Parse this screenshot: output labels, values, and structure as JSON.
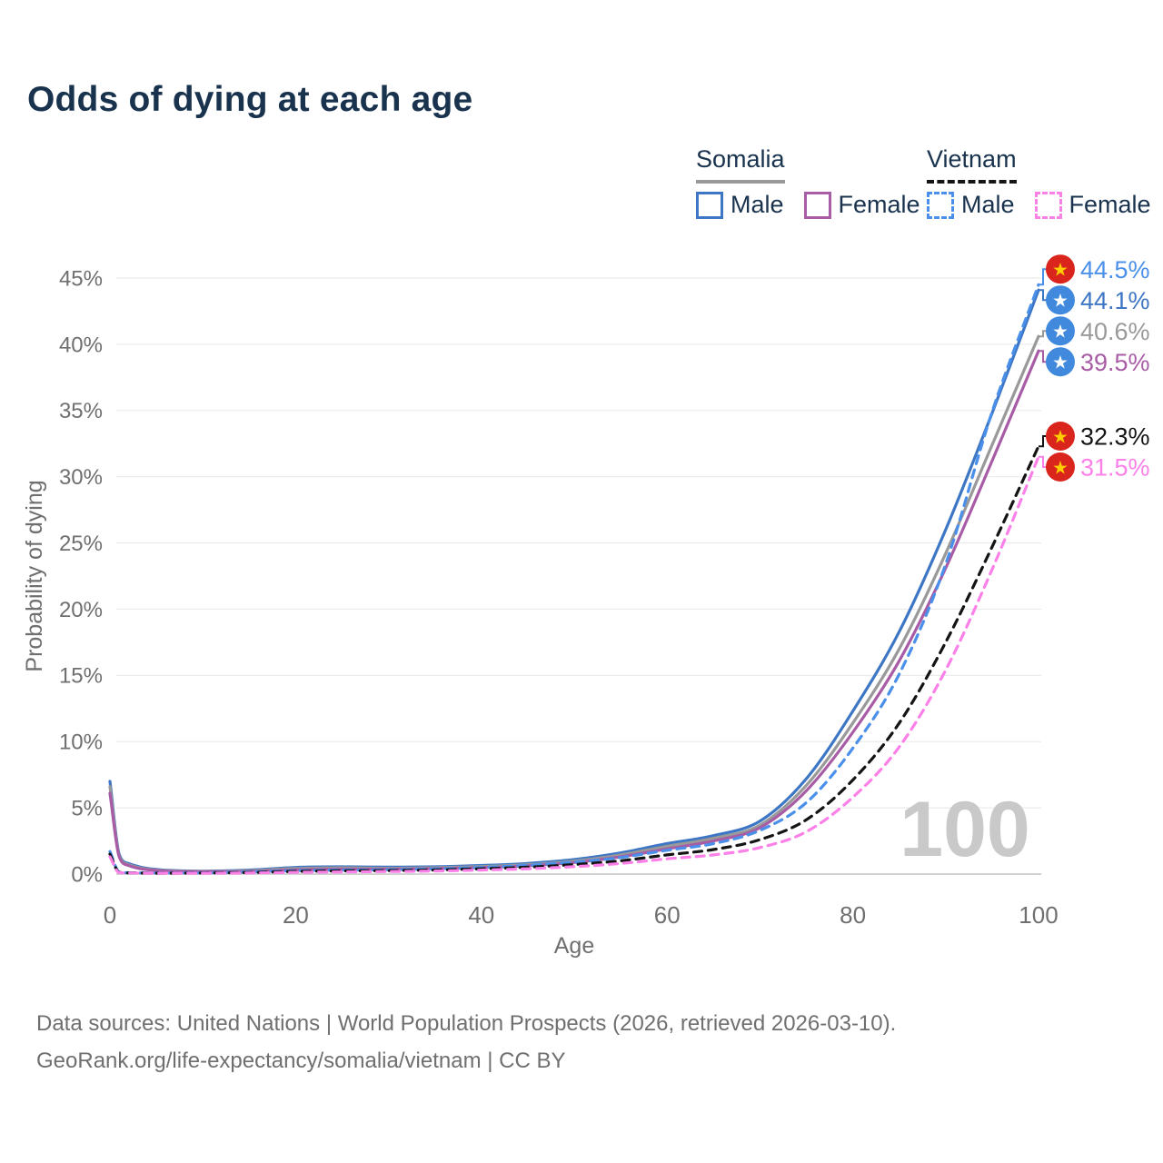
{
  "page": {
    "title": "Odds of dying at each age",
    "background": "#ffffff",
    "accent_navy": "#19334e"
  },
  "legend": {
    "groups": [
      {
        "id": "somalia",
        "label": "Somalia",
        "line_style": "solid",
        "line_color": "#999999",
        "items": [
          {
            "label": "Male",
            "color": "#3d76c4",
            "style": "solid"
          },
          {
            "label": "Female",
            "color": "#a85ca6",
            "style": "solid"
          }
        ]
      },
      {
        "id": "vietnam",
        "label": "Vietnam",
        "line_style": "dashed",
        "line_color": "#141414",
        "items": [
          {
            "label": "Male",
            "color": "#4a90ea",
            "style": "dashed"
          },
          {
            "label": "Female",
            "color": "#fb80e8",
            "style": "dashed"
          }
        ]
      }
    ]
  },
  "flags": {
    "somalia": {
      "bg": "#4189dd",
      "star": "#ffffff"
    },
    "vietnam": {
      "bg": "#da251d",
      "star": "#ffcd00"
    }
  },
  "chart_data": {
    "type": "line",
    "title": "Odds of dying at each age",
    "xlabel": "Age",
    "ylabel": "Probability of dying",
    "xlim": [
      0,
      100
    ],
    "ylim": [
      0,
      45
    ],
    "x_ticks": [
      0,
      20,
      40,
      60,
      80,
      100
    ],
    "y_ticks": [
      0,
      5,
      10,
      15,
      20,
      25,
      30,
      35,
      40,
      45
    ],
    "y_tick_suffix": "%",
    "grid": true,
    "legend_position": "top-right",
    "watermark": "100",
    "ages": [
      0,
      1,
      2,
      5,
      10,
      15,
      20,
      25,
      30,
      35,
      40,
      45,
      50,
      55,
      60,
      65,
      70,
      75,
      80,
      85,
      90,
      95,
      100
    ],
    "series": [
      {
        "id": "somalia-male",
        "name": "Somalia Male",
        "country": "somalia",
        "sex": "male",
        "style": "solid",
        "color": "#3d76c4",
        "label_color": "#3d76c4",
        "end_value": 44.1,
        "end_label": "44.1%",
        "values": [
          7.0,
          1.5,
          0.8,
          0.35,
          0.22,
          0.3,
          0.5,
          0.55,
          0.52,
          0.55,
          0.65,
          0.8,
          1.1,
          1.6,
          2.3,
          2.9,
          4.0,
          7.2,
          12.3,
          18.3,
          26.0,
          34.8,
          44.1
        ]
      },
      {
        "id": "somalia-both",
        "name": "Somalia Both sexes",
        "country": "somalia",
        "sex": "both",
        "style": "solid",
        "color": "#999999",
        "label_color": "#999999",
        "end_value": 40.6,
        "end_label": "40.6%",
        "values": [
          6.6,
          1.4,
          0.72,
          0.3,
          0.2,
          0.25,
          0.42,
          0.47,
          0.44,
          0.48,
          0.57,
          0.71,
          0.98,
          1.45,
          2.1,
          2.7,
          3.7,
          6.7,
          11.4,
          17.0,
          24.2,
          32.4,
          40.6
        ]
      },
      {
        "id": "somalia-female",
        "name": "Somalia Female",
        "country": "somalia",
        "sex": "female",
        "style": "solid",
        "color": "#a85ca6",
        "label_color": "#a85ca6",
        "end_value": 39.5,
        "end_label": "39.5%",
        "values": [
          6.1,
          1.3,
          0.65,
          0.27,
          0.18,
          0.2,
          0.32,
          0.37,
          0.37,
          0.41,
          0.49,
          0.63,
          0.87,
          1.3,
          1.9,
          2.5,
          3.5,
          6.3,
          10.7,
          16.1,
          23.1,
          31.2,
          39.5
        ]
      },
      {
        "id": "vietnam-male",
        "name": "Vietnam Male",
        "country": "vietnam",
        "sex": "male",
        "style": "dashed",
        "color": "#4a90ea",
        "label_color": "#4a90ea",
        "end_value": 44.5,
        "end_label": "44.5%",
        "values": [
          1.7,
          0.16,
          0.1,
          0.08,
          0.09,
          0.16,
          0.26,
          0.3,
          0.33,
          0.4,
          0.5,
          0.66,
          0.9,
          1.25,
          1.8,
          2.3,
          3.3,
          5.4,
          9.5,
          15.1,
          23.4,
          34.9,
          44.5
        ]
      },
      {
        "id": "vietnam-both",
        "name": "Vietnam Both sexes",
        "country": "vietnam",
        "sex": "both",
        "style": "dashed",
        "color": "#141414",
        "label_color": "#141414",
        "end_value": 32.3,
        "end_label": "32.3%",
        "values": [
          1.5,
          0.13,
          0.09,
          0.07,
          0.08,
          0.12,
          0.2,
          0.24,
          0.26,
          0.31,
          0.4,
          0.52,
          0.72,
          1.0,
          1.45,
          1.85,
          2.6,
          4.1,
          7.1,
          11.4,
          17.5,
          24.7,
          32.3
        ]
      },
      {
        "id": "vietnam-female",
        "name": "Vietnam Female",
        "country": "vietnam",
        "sex": "female",
        "style": "dashed",
        "color": "#fb80e8",
        "label_color": "#fb80e8",
        "end_value": 31.5,
        "end_label": "31.5%",
        "values": [
          1.3,
          0.11,
          0.08,
          0.06,
          0.06,
          0.08,
          0.13,
          0.16,
          0.19,
          0.23,
          0.3,
          0.4,
          0.56,
          0.8,
          1.15,
          1.45,
          2.0,
          3.2,
          5.8,
          9.6,
          15.4,
          23.0,
          31.5
        ]
      }
    ]
  },
  "footer": {
    "line1": "Data sources: United Nations | World Population Prospects (2026, retrieved 2026-03-10).",
    "line2": "GeoRank.org/life-expectancy/somalia/vietnam | CC BY"
  }
}
